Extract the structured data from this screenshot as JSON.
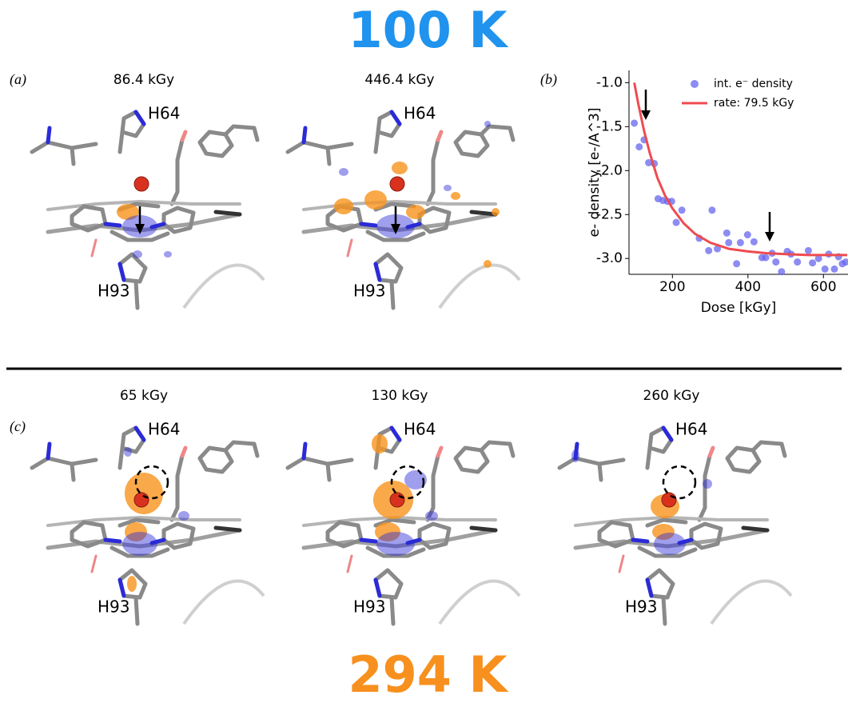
{
  "title_top": "100 K",
  "title_bottom": "294 K",
  "panels": [
    {
      "label": "(a)",
      "images": [
        {
          "dose": "86.4 kGy",
          "residues": [
            "H64",
            "H93"
          ]
        },
        {
          "dose": "446.4 kGy",
          "residues": [
            "H64",
            "H93"
          ]
        }
      ]
    },
    {
      "label": "(b)"
    },
    {
      "label": "(c)",
      "images": [
        {
          "dose": "65 kGy",
          "residues": [
            "H64",
            "H93"
          ]
        },
        {
          "dose": "130 kGy",
          "residues": [
            "H64",
            "H93"
          ]
        },
        {
          "dose": "260 kGy",
          "residues": [
            "H64",
            "H93"
          ]
        }
      ]
    }
  ],
  "chart_data": {
    "type": "scatter",
    "x_label": "Dose [kGy]",
    "y_label": "e- density [e-/A^3]",
    "xlim": [
      85,
      665
    ],
    "ylim": [
      -3.18,
      -0.86
    ],
    "xticks": [
      200,
      400,
      600
    ],
    "yticks": [
      {
        "value": -1,
        "label": "-1.0"
      },
      -1.5,
      {
        "value": -2,
        "label": "-2.0"
      },
      -2.5,
      {
        "value": -3,
        "label": "-3.0"
      }
    ],
    "legend": "upper right",
    "series": [
      {
        "name": "int. e⁻ density",
        "color": "#6666ee",
        "style": "markers",
        "x": [
          99,
          112,
          125,
          137,
          152,
          162,
          175,
          187,
          198,
          210,
          225,
          271,
          296,
          305,
          319,
          344,
          349,
          370,
          380,
          399,
          416,
          437,
          447,
          464,
          474,
          489,
          504,
          514,
          531,
          560,
          571,
          587,
          604,
          614,
          629,
          640,
          650,
          659
        ],
        "values": [
          -1.46,
          -1.73,
          -1.65,
          -1.91,
          -1.92,
          -2.32,
          -2.34,
          -2.35,
          -2.35,
          -2.59,
          -2.45,
          -2.77,
          -2.91,
          -2.45,
          -2.89,
          -2.71,
          -2.82,
          -3.06,
          -2.82,
          -2.73,
          -2.81,
          -2.99,
          -2.99,
          -2.94,
          -3.04,
          -3.15,
          -2.92,
          -2.95,
          -3.04,
          -2.91,
          -3.05,
          -3.0,
          -3.12,
          -2.95,
          -3.12,
          -2.98,
          -3.06,
          -3.04
        ]
      },
      {
        "name": "rate: 79.5 kGy",
        "color": "#ee4b50",
        "style": "line",
        "x": [
          99,
          110,
          125,
          140,
          160,
          180,
          200,
          230,
          260,
          300,
          350,
          400,
          450,
          500,
          560,
          620,
          663
        ],
        "values": [
          -1.0,
          -1.25,
          -1.55,
          -1.8,
          -2.08,
          -2.28,
          -2.43,
          -2.6,
          -2.72,
          -2.82,
          -2.89,
          -2.92,
          -2.94,
          -2.95,
          -2.96,
          -2.96,
          -2.96
        ]
      }
    ]
  }
}
